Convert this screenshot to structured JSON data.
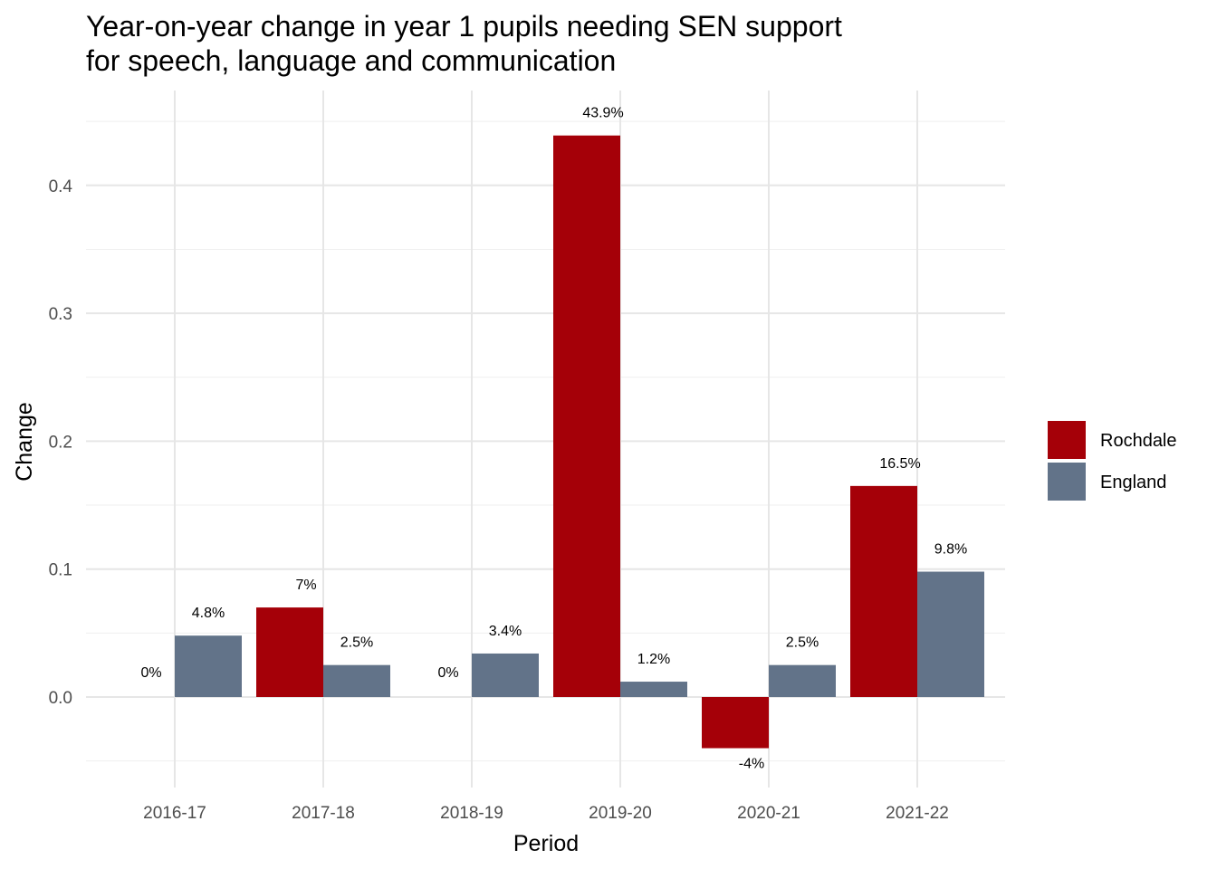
{
  "chart_data": {
    "type": "bar",
    "title_lines": [
      "Year-on-year change in year 1 pupils needing SEN support",
      "for speech, language and communication"
    ],
    "xlabel": "Period",
    "ylabel": "Change",
    "categories": [
      "2016-17",
      "2017-18",
      "2018-19",
      "2019-20",
      "2020-21",
      "2021-22"
    ],
    "series": [
      {
        "name": "Rochdale",
        "color": "#a50008",
        "values": [
          0,
          0.07,
          0,
          0.439,
          -0.04,
          0.165
        ],
        "labels": [
          "0%",
          "7%",
          "0%",
          "43.9%",
          "-4%",
          "16.5%"
        ]
      },
      {
        "name": "England",
        "color": "#627389",
        "values": [
          0.048,
          0.025,
          0.034,
          0.012,
          0.025,
          0.098
        ],
        "labels": [
          "4.8%",
          "2.5%",
          "3.4%",
          "1.2%",
          "2.5%",
          "9.8%"
        ]
      }
    ],
    "y_ticks": [
      0.0,
      0.1,
      0.2,
      0.3,
      0.4
    ],
    "y_tick_labels": [
      "0.0",
      "0.1",
      "0.2",
      "0.3",
      "0.4"
    ],
    "ylim": [
      -0.05,
      0.45
    ],
    "grid": true,
    "legend_position": "right"
  }
}
